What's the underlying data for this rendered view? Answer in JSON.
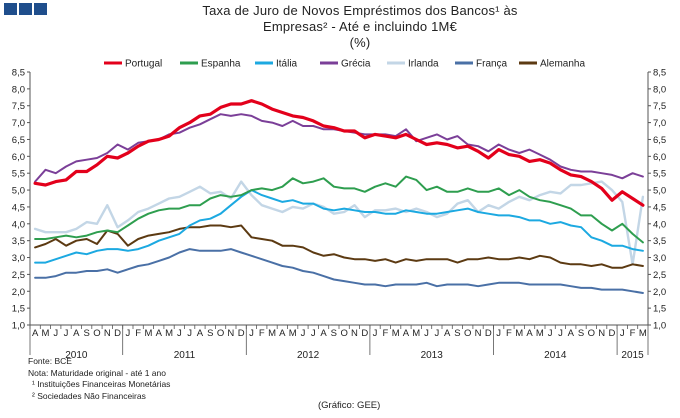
{
  "header": {
    "title": "Taxa de Juro de Novos Empréstimos dos Bancos¹ às Empresas² - Até e incluindo 1M€",
    "unit": "(%)"
  },
  "notes": {
    "source": "Fonte: BCE",
    "note": "Nota: Maturidade original - até 1 ano",
    "footnote1": "¹ Instituições Financeiras Monetárias",
    "footnote2": "² Sociedades Não Financeiras",
    "credit": "(Gráfico: GEE)"
  },
  "chart_data": {
    "type": "line",
    "title": "Taxa de Juro de Novos Empréstimos dos Bancos¹ às Empresas² - Até e incluindo 1M€",
    "ylabel": "(%)",
    "xlabel": "",
    "ylim": [
      1.0,
      8.5
    ],
    "yticks": [
      "1,0",
      "1,5",
      "2,0",
      "2,5",
      "3,0",
      "3,5",
      "4,0",
      "4,5",
      "5,0",
      "5,5",
      "6,0",
      "6,5",
      "7,0",
      "7,5",
      "8,0",
      "8,5"
    ],
    "grid": false,
    "legend_position": "top",
    "month_labels": [
      "A",
      "M",
      "J",
      "J",
      "A",
      "S",
      "O",
      "N",
      "D",
      "J",
      "F",
      "M",
      "A",
      "M",
      "J",
      "J",
      "A",
      "S",
      "O",
      "N",
      "D",
      "J",
      "F",
      "M",
      "A",
      "M",
      "J",
      "J",
      "A",
      "S",
      "O",
      "N",
      "D",
      "J",
      "F",
      "M",
      "A",
      "M",
      "J",
      "J",
      "A",
      "S",
      "O",
      "N",
      "D",
      "J",
      "F",
      "M",
      "A",
      "M",
      "J",
      "J",
      "A",
      "S",
      "O",
      "N",
      "D",
      "J",
      "F",
      "M"
    ],
    "year_labels": [
      {
        "label": "2010",
        "start": 0,
        "end": 8
      },
      {
        "label": "2011",
        "start": 9,
        "end": 20
      },
      {
        "label": "2012",
        "start": 21,
        "end": 32
      },
      {
        "label": "2013",
        "start": 33,
        "end": 44
      },
      {
        "label": "2014",
        "start": 45,
        "end": 56
      },
      {
        "label": "2015",
        "start": 57,
        "end": 59
      }
    ],
    "series": [
      {
        "name": "Portugal",
        "color": "#e3001b",
        "width": 3.2,
        "values": [
          5.2,
          5.15,
          5.25,
          5.3,
          5.55,
          5.55,
          5.75,
          6.0,
          5.95,
          6.1,
          6.3,
          6.45,
          6.5,
          6.6,
          6.85,
          7.0,
          7.2,
          7.25,
          7.45,
          7.55,
          7.55,
          7.65,
          7.55,
          7.4,
          7.3,
          7.2,
          7.15,
          7.05,
          6.9,
          6.85,
          6.75,
          6.75,
          6.55,
          6.65,
          6.6,
          6.55,
          6.65,
          6.5,
          6.35,
          6.4,
          6.35,
          6.25,
          6.3,
          6.15,
          5.95,
          6.2,
          6.05,
          6.0,
          5.85,
          5.9,
          5.8,
          5.6,
          5.45,
          5.4,
          5.25,
          5.05,
          4.7,
          4.95,
          4.75,
          4.55
        ]
      },
      {
        "name": "Espanha",
        "color": "#2e9e4f",
        "width": 2,
        "values": [
          3.55,
          3.55,
          3.6,
          3.65,
          3.6,
          3.65,
          3.75,
          3.8,
          3.75,
          3.95,
          4.15,
          4.3,
          4.4,
          4.45,
          4.45,
          4.55,
          4.55,
          4.75,
          4.85,
          4.8,
          4.85,
          5.0,
          5.05,
          5.0,
          5.1,
          5.35,
          5.2,
          5.25,
          5.35,
          5.1,
          5.05,
          5.05,
          4.95,
          5.1,
          5.2,
          5.1,
          5.4,
          5.3,
          5.0,
          5.1,
          4.95,
          4.95,
          5.05,
          4.95,
          4.95,
          5.05,
          4.85,
          5.0,
          4.8,
          4.7,
          4.65,
          4.55,
          4.45,
          4.25,
          4.25,
          4.0,
          3.8,
          4.0,
          3.7,
          3.45
        ]
      },
      {
        "name": "Itália",
        "color": "#1ca9e1",
        "width": 2,
        "values": [
          2.85,
          2.85,
          2.95,
          3.05,
          3.15,
          3.1,
          3.2,
          3.25,
          3.25,
          3.2,
          3.25,
          3.35,
          3.5,
          3.6,
          3.7,
          3.95,
          4.1,
          4.15,
          4.3,
          4.55,
          4.8,
          5.0,
          4.85,
          4.75,
          4.65,
          4.7,
          4.6,
          4.6,
          4.45,
          4.4,
          4.45,
          4.4,
          4.35,
          4.35,
          4.3,
          4.3,
          4.4,
          4.35,
          4.3,
          4.3,
          4.35,
          4.4,
          4.45,
          4.35,
          4.3,
          4.25,
          4.25,
          4.2,
          4.1,
          4.1,
          4.0,
          4.05,
          3.95,
          3.9,
          3.6,
          3.5,
          3.35,
          3.35,
          3.25,
          3.2
        ]
      },
      {
        "name": "Grécia",
        "color": "#7b3f98",
        "width": 2,
        "values": [
          5.25,
          5.6,
          5.5,
          5.7,
          5.85,
          5.9,
          5.95,
          6.1,
          6.35,
          6.2,
          6.4,
          6.45,
          6.5,
          6.65,
          6.7,
          6.85,
          6.95,
          7.1,
          7.25,
          7.2,
          7.25,
          7.2,
          7.05,
          7.0,
          6.9,
          7.05,
          6.9,
          6.9,
          6.8,
          6.8,
          6.75,
          6.7,
          6.65,
          6.65,
          6.65,
          6.6,
          6.8,
          6.45,
          6.55,
          6.65,
          6.5,
          6.6,
          6.35,
          6.3,
          6.15,
          6.35,
          6.2,
          6.1,
          6.2,
          6.05,
          5.9,
          5.7,
          5.6,
          5.55,
          5.55,
          5.5,
          5.45,
          5.35,
          5.5,
          5.4
        ]
      },
      {
        "name": "Irlanda",
        "color": "#c3d6e6",
        "width": 2.4,
        "values": [
          3.85,
          3.75,
          3.75,
          3.75,
          3.85,
          4.05,
          4.0,
          4.55,
          3.9,
          4.1,
          4.35,
          4.45,
          4.6,
          4.75,
          4.8,
          4.95,
          5.1,
          4.9,
          4.95,
          4.75,
          5.25,
          4.85,
          4.55,
          4.45,
          4.35,
          4.5,
          4.45,
          4.6,
          4.5,
          4.3,
          4.35,
          4.55,
          4.2,
          4.4,
          4.4,
          4.45,
          4.35,
          4.45,
          4.35,
          4.2,
          4.3,
          4.6,
          4.7,
          4.35,
          4.55,
          4.45,
          4.65,
          4.8,
          4.7,
          4.85,
          4.95,
          4.9,
          5.15,
          5.15,
          5.2,
          5.25,
          5.0,
          4.65,
          2.8,
          4.8
        ]
      },
      {
        "name": "França",
        "color": "#4a70a6",
        "width": 2,
        "values": [
          2.4,
          2.4,
          2.45,
          2.55,
          2.55,
          2.6,
          2.6,
          2.65,
          2.55,
          2.65,
          2.75,
          2.8,
          2.9,
          3.0,
          3.15,
          3.25,
          3.2,
          3.2,
          3.2,
          3.25,
          3.15,
          3.05,
          2.95,
          2.85,
          2.75,
          2.7,
          2.6,
          2.55,
          2.45,
          2.35,
          2.3,
          2.25,
          2.2,
          2.2,
          2.15,
          2.2,
          2.2,
          2.2,
          2.25,
          2.15,
          2.2,
          2.2,
          2.2,
          2.15,
          2.2,
          2.25,
          2.25,
          2.25,
          2.2,
          2.2,
          2.2,
          2.2,
          2.15,
          2.1,
          2.1,
          2.05,
          2.05,
          2.05,
          2.0,
          1.95
        ]
      },
      {
        "name": "Alemanha",
        "color": "#5c3a12",
        "width": 2,
        "values": [
          3.3,
          3.4,
          3.55,
          3.35,
          3.5,
          3.55,
          3.4,
          3.8,
          3.7,
          3.35,
          3.55,
          3.65,
          3.7,
          3.75,
          3.85,
          3.9,
          3.9,
          3.95,
          3.95,
          3.9,
          3.95,
          3.6,
          3.55,
          3.5,
          3.35,
          3.35,
          3.3,
          3.15,
          3.05,
          3.1,
          3.0,
          2.95,
          2.95,
          2.9,
          2.95,
          2.85,
          2.95,
          2.9,
          2.95,
          2.95,
          2.95,
          2.85,
          2.95,
          2.95,
          3.0,
          2.95,
          2.95,
          3.0,
          2.95,
          3.05,
          3.0,
          2.85,
          2.8,
          2.8,
          2.75,
          2.8,
          2.7,
          2.7,
          2.8,
          2.75
        ]
      }
    ]
  }
}
